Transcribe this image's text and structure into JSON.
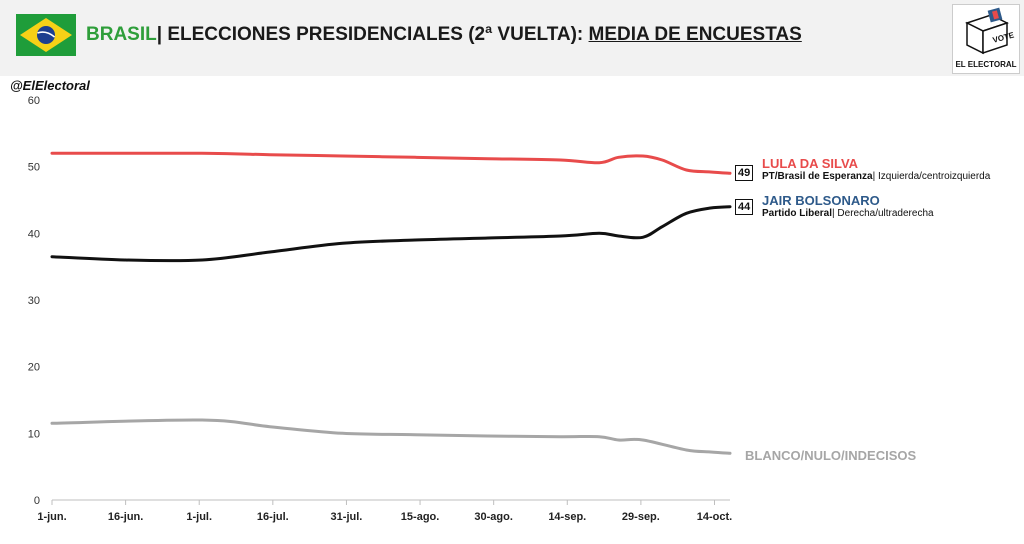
{
  "header": {
    "country": "BRASIL",
    "separator": "|",
    "title_main": " ELECCIONES PRESIDENCIALES (2ª VUELTA): ",
    "title_emph": "MEDIA DE ENCUESTAS",
    "logo_text": "EL ELECTORAL",
    "logo_vote": "VOTE"
  },
  "handle": "@ElElectoral",
  "colors": {
    "lula": "#e84b4b",
    "bolsonaro": "#111111",
    "blanco": "#a6a6a6",
    "bolsonaro_name": "#2e5a8a",
    "flag_green": "#1f9d3a",
    "flag_yellow": "#f7d117",
    "flag_blue": "#1d3f8f"
  },
  "candidates": {
    "lula": {
      "name": "LULA DA SILVA",
      "party": "PT/Brasil de Esperanza",
      "ideology": "Izquierda/centroizquierda",
      "end_value": "49"
    },
    "bolsonaro": {
      "name": "JAIR BOLSONARO",
      "party": "Partido Liberal",
      "ideology": "Derecha/ultraderecha",
      "end_value": "44"
    },
    "blanco": {
      "name": "BLANCO/NULO/INDECISOS"
    }
  },
  "chart_data": {
    "type": "line",
    "xlabel": "",
    "ylabel": "",
    "ylim": [
      0,
      60
    ],
    "yticks": [
      0,
      10,
      20,
      30,
      40,
      50,
      60
    ],
    "x_tick_labels": [
      "1-jun.",
      "16-jun.",
      "1-jul.",
      "16-jul.",
      "31-jul.",
      "15-ago.",
      "30-ago.",
      "14-sep.",
      "29-sep.",
      "14-oct."
    ],
    "x_unit": "days since 1-jun.",
    "xlim": [
      0,
      140
    ],
    "grid": false,
    "series": [
      {
        "name": "LULA DA SILVA",
        "x": [
          0,
          31,
          45,
          60,
          75,
          90,
          105,
          113,
          117,
          122,
          126,
          131,
          136,
          140
        ],
        "y": [
          52,
          52,
          51.8,
          51.6,
          51.4,
          51.2,
          51,
          50.6,
          51.4,
          51.6,
          51,
          49.5,
          49.2,
          49
        ]
      },
      {
        "name": "JAIR BOLSONARO",
        "x": [
          0,
          15,
          31,
          45,
          60,
          75,
          90,
          105,
          113,
          117,
          122,
          126,
          131,
          136,
          140
        ],
        "y": [
          36.5,
          36,
          36,
          37.2,
          38.5,
          39,
          39.3,
          39.6,
          40,
          39.6,
          39.4,
          41,
          43,
          43.8,
          44
        ]
      },
      {
        "name": "BLANCO/NULO/INDECISOS",
        "x": [
          0,
          31,
          45,
          60,
          75,
          90,
          105,
          113,
          117,
          122,
          131,
          136,
          140
        ],
        "y": [
          11.5,
          12,
          11,
          10,
          9.8,
          9.6,
          9.5,
          9.5,
          9,
          9,
          7.5,
          7.2,
          7
        ]
      }
    ]
  }
}
